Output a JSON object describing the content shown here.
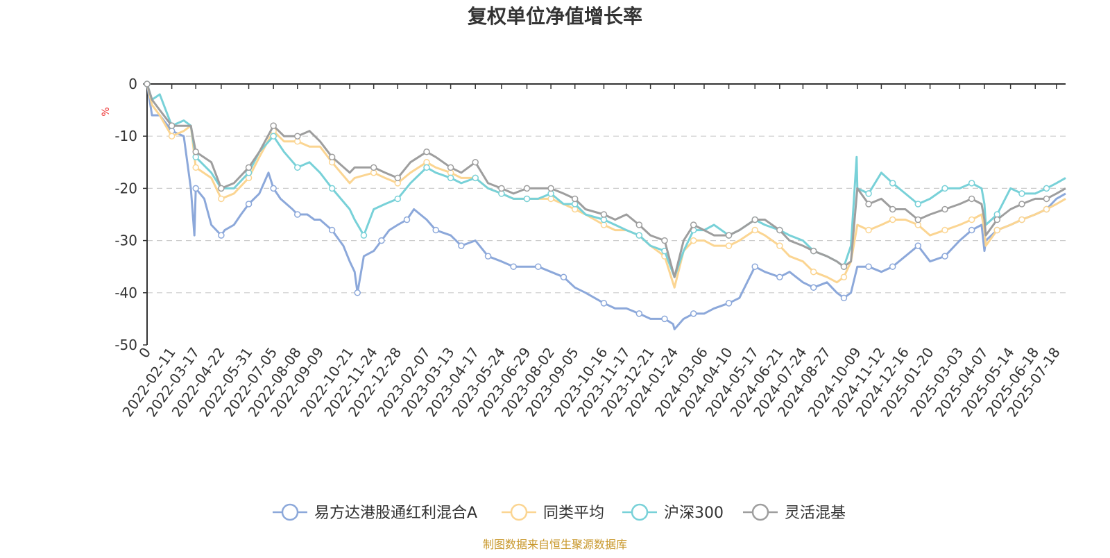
{
  "chart_data": {
    "type": "line",
    "title": "复权单位净值增长率",
    "ylabel": "%",
    "ylim": [
      -50,
      0
    ],
    "yticks": [
      0,
      -10,
      -20,
      -30,
      -40,
      -50
    ],
    "xlim": [
      "2022-01-07",
      "2025-07-31"
    ],
    "xticks": [
      "0",
      "2022-02-11",
      "2022-03-17",
      "2022-04-22",
      "2022-05-31",
      "2022-07-05",
      "2022-08-08",
      "2022-09-09",
      "2022-10-21",
      "2022-11-24",
      "2022-12-28",
      "2023-02-07",
      "2023-03-13",
      "2023-04-17",
      "2023-05-24",
      "2023-06-29",
      "2023-08-02",
      "2023-09-05",
      "2023-10-16",
      "2023-11-17",
      "2023-12-21",
      "2024-01-24",
      "2024-03-06",
      "2024-04-10",
      "2024-05-17",
      "2024-06-21",
      "2024-07-24",
      "2024-08-27",
      "2024-10-09",
      "2024-11-12",
      "2024-12-16",
      "2025-01-20",
      "2025-03-03",
      "2025-04-07",
      "2025-05-14",
      "2025-06-18",
      "2025-07-18"
    ],
    "grid": true,
    "legend_position": "bottom",
    "series": [
      {
        "name": "易方达港股通红利混合A",
        "color": "#8ca8da",
        "x": [
          "2022-01-07",
          "2022-01-14",
          "2022-01-25",
          "2022-02-11",
          "2022-02-28",
          "2022-03-10",
          "2022-03-15",
          "2022-03-17",
          "2022-03-29",
          "2022-04-08",
          "2022-04-22",
          "2022-04-27",
          "2022-05-10",
          "2022-05-20",
          "2022-05-31",
          "2022-06-15",
          "2022-06-28",
          "2022-07-05",
          "2022-07-15",
          "2022-08-01",
          "2022-08-08",
          "2022-08-22",
          "2022-09-01",
          "2022-09-09",
          "2022-09-26",
          "2022-10-12",
          "2022-10-21",
          "2022-10-28",
          "2022-11-01",
          "2022-11-10",
          "2022-11-24",
          "2022-12-05",
          "2022-12-16",
          "2022-12-28",
          "2023-01-10",
          "2023-01-20",
          "2023-02-07",
          "2023-02-20",
          "2023-03-13",
          "2023-03-28",
          "2023-04-17",
          "2023-05-05",
          "2023-05-24",
          "2023-06-10",
          "2023-06-29",
          "2023-07-15",
          "2023-08-02",
          "2023-08-20",
          "2023-09-05",
          "2023-09-20",
          "2023-10-16",
          "2023-11-01",
          "2023-11-17",
          "2023-12-05",
          "2023-12-21",
          "2024-01-10",
          "2024-01-22",
          "2024-01-24",
          "2024-02-06",
          "2024-02-20",
          "2024-03-06",
          "2024-03-20",
          "2024-04-10",
          "2024-04-25",
          "2024-05-17",
          "2024-05-31",
          "2024-06-21",
          "2024-07-05",
          "2024-07-24",
          "2024-08-08",
          "2024-08-27",
          "2024-09-10",
          "2024-09-20",
          "2024-09-30",
          "2024-10-09",
          "2024-10-25",
          "2024-11-12",
          "2024-11-28",
          "2024-12-16",
          "2025-01-03",
          "2025-01-20",
          "2025-02-10",
          "2025-03-03",
          "2025-03-20",
          "2025-04-03",
          "2025-04-07",
          "2025-04-09",
          "2025-04-25",
          "2025-05-14",
          "2025-05-30",
          "2025-06-18",
          "2025-07-04",
          "2025-07-18",
          "2025-07-31"
        ],
        "values": [
          0,
          -6,
          -6,
          -9,
          -10,
          -20,
          -29,
          -20,
          -22,
          -27,
          -29,
          -28,
          -27,
          -25,
          -23,
          -21,
          -17,
          -20,
          -22,
          -24,
          -25,
          -25,
          -26,
          -26,
          -28,
          -31,
          -34,
          -36,
          -40,
          -33,
          -32,
          -30,
          -28,
          -27,
          -26,
          -24,
          -26,
          -28,
          -29,
          -31,
          -30,
          -33,
          -34,
          -35,
          -35,
          -35,
          -36,
          -37,
          -39,
          -40,
          -42,
          -43,
          -43,
          -44,
          -45,
          -45,
          -46,
          -47,
          -45,
          -44,
          -44,
          -43,
          -42,
          -41,
          -35,
          -36,
          -37,
          -36,
          -38,
          -39,
          -38,
          -40,
          -41,
          -40,
          -35,
          -35,
          -36,
          -35,
          -33,
          -31,
          -34,
          -33,
          -30,
          -28,
          -27,
          -32,
          -30,
          -28,
          -27,
          -26,
          -25,
          -24,
          -22,
          -21
        ]
      },
      {
        "name": "同类平均",
        "color": "#fbd592",
        "x": [
          "2022-01-07",
          "2022-01-14",
          "2022-01-25",
          "2022-02-11",
          "2022-02-28",
          "2022-03-10",
          "2022-03-17",
          "2022-04-08",
          "2022-04-22",
          "2022-05-10",
          "2022-05-31",
          "2022-06-15",
          "2022-07-05",
          "2022-07-20",
          "2022-08-08",
          "2022-08-25",
          "2022-09-09",
          "2022-09-26",
          "2022-10-21",
          "2022-10-28",
          "2022-11-24",
          "2022-12-10",
          "2022-12-28",
          "2023-01-15",
          "2023-02-07",
          "2023-02-20",
          "2023-03-13",
          "2023-03-28",
          "2023-04-17",
          "2023-05-05",
          "2023-05-24",
          "2023-06-10",
          "2023-06-29",
          "2023-07-15",
          "2023-08-02",
          "2023-08-20",
          "2023-09-05",
          "2023-09-20",
          "2023-10-16",
          "2023-11-01",
          "2023-11-17",
          "2023-12-05",
          "2023-12-21",
          "2024-01-10",
          "2024-01-24",
          "2024-02-06",
          "2024-02-20",
          "2024-03-06",
          "2024-03-20",
          "2024-04-10",
          "2024-04-25",
          "2024-05-17",
          "2024-05-31",
          "2024-06-21",
          "2024-07-05",
          "2024-07-24",
          "2024-08-08",
          "2024-08-27",
          "2024-09-10",
          "2024-09-20",
          "2024-09-30",
          "2024-10-09",
          "2024-10-25",
          "2024-11-12",
          "2024-11-28",
          "2024-12-16",
          "2025-01-03",
          "2025-01-20",
          "2025-02-10",
          "2025-03-03",
          "2025-03-20",
          "2025-04-03",
          "2025-04-07",
          "2025-04-09",
          "2025-04-25",
          "2025-05-14",
          "2025-05-30",
          "2025-06-18",
          "2025-07-04",
          "2025-07-18",
          "2025-07-31"
        ],
        "values": [
          0,
          -4,
          -6,
          -10,
          -9,
          -8,
          -16,
          -18,
          -22,
          -21,
          -18,
          -14,
          -9,
          -11,
          -11,
          -12,
          -12,
          -15,
          -19,
          -18,
          -17,
          -18,
          -19,
          -17,
          -15,
          -16,
          -17,
          -18,
          -18,
          -20,
          -21,
          -22,
          -22,
          -22,
          -22,
          -23,
          -24,
          -25,
          -27,
          -28,
          -28,
          -29,
          -31,
          -33,
          -39,
          -32,
          -30,
          -30,
          -31,
          -31,
          -30,
          -28,
          -29,
          -31,
          -33,
          -34,
          -36,
          -37,
          -38,
          -37,
          -34,
          -27,
          -28,
          -27,
          -26,
          -26,
          -27,
          -29,
          -28,
          -27,
          -26,
          -25,
          -28,
          -31,
          -28,
          -27,
          -26,
          -25,
          -24,
          -23,
          -22
        ]
      },
      {
        "name": "沪深300",
        "color": "#78d1d8",
        "x": [
          "2022-01-07",
          "2022-01-14",
          "2022-01-25",
          "2022-02-11",
          "2022-02-28",
          "2022-03-10",
          "2022-03-17",
          "2022-04-08",
          "2022-04-22",
          "2022-05-10",
          "2022-05-31",
          "2022-06-15",
          "2022-07-05",
          "2022-07-20",
          "2022-08-08",
          "2022-08-25",
          "2022-09-09",
          "2022-09-26",
          "2022-10-21",
          "2022-10-28",
          "2022-11-10",
          "2022-11-24",
          "2022-12-10",
          "2022-12-28",
          "2023-01-15",
          "2023-02-07",
          "2023-02-20",
          "2023-03-13",
          "2023-03-28",
          "2023-04-17",
          "2023-05-05",
          "2023-05-24",
          "2023-06-10",
          "2023-06-29",
          "2023-07-15",
          "2023-08-02",
          "2023-08-20",
          "2023-09-05",
          "2023-09-20",
          "2023-10-16",
          "2023-11-01",
          "2023-11-17",
          "2023-12-05",
          "2023-12-21",
          "2024-01-10",
          "2024-01-24",
          "2024-02-06",
          "2024-02-20",
          "2024-03-06",
          "2024-03-20",
          "2024-04-10",
          "2024-04-25",
          "2024-05-17",
          "2024-05-31",
          "2024-06-21",
          "2024-07-05",
          "2024-07-24",
          "2024-08-08",
          "2024-08-27",
          "2024-09-10",
          "2024-09-20",
          "2024-09-30",
          "2024-10-08",
          "2024-10-09",
          "2024-10-25",
          "2024-11-12",
          "2024-11-28",
          "2024-12-16",
          "2025-01-03",
          "2025-01-20",
          "2025-02-10",
          "2025-03-03",
          "2025-03-20",
          "2025-04-03",
          "2025-04-07",
          "2025-04-09",
          "2025-04-25",
          "2025-05-14",
          "2025-05-30",
          "2025-06-18",
          "2025-07-04",
          "2025-07-18",
          "2025-07-31"
        ],
        "values": [
          0,
          -3,
          -2,
          -8,
          -7,
          -8,
          -14,
          -17,
          -20,
          -20,
          -17,
          -13,
          -10,
          -13,
          -16,
          -15,
          -17,
          -20,
          -24,
          -26,
          -29,
          -24,
          -23,
          -22,
          -19,
          -16,
          -17,
          -18,
          -19,
          -18,
          -20,
          -21,
          -22,
          -22,
          -22,
          -21,
          -23,
          -23,
          -25,
          -26,
          -27,
          -28,
          -29,
          -31,
          -32,
          -37,
          -32,
          -28,
          -28,
          -27,
          -29,
          -28,
          -26,
          -27,
          -28,
          -29,
          -30,
          -32,
          -33,
          -34,
          -35,
          -31,
          -14,
          -20,
          -21,
          -17,
          -19,
          -21,
          -23,
          -22,
          -20,
          -20,
          -19,
          -20,
          -23,
          -27,
          -25,
          -20,
          -21,
          -21,
          -20,
          -19,
          -18
        ]
      },
      {
        "name": "灵活混基",
        "color": "#9e9e9e",
        "x": [
          "2022-01-07",
          "2022-01-14",
          "2022-01-25",
          "2022-02-11",
          "2022-02-28",
          "2022-03-10",
          "2022-03-17",
          "2022-04-08",
          "2022-04-22",
          "2022-05-10",
          "2022-05-31",
          "2022-06-15",
          "2022-07-05",
          "2022-07-20",
          "2022-08-08",
          "2022-08-25",
          "2022-09-09",
          "2022-09-26",
          "2022-10-21",
          "2022-10-28",
          "2022-11-24",
          "2022-12-10",
          "2022-12-28",
          "2023-01-15",
          "2023-02-07",
          "2023-02-20",
          "2023-03-13",
          "2023-03-28",
          "2023-04-17",
          "2023-05-05",
          "2023-05-24",
          "2023-06-10",
          "2023-06-29",
          "2023-07-15",
          "2023-08-02",
          "2023-08-20",
          "2023-09-05",
          "2023-09-20",
          "2023-10-16",
          "2023-11-01",
          "2023-11-17",
          "2023-12-05",
          "2023-12-21",
          "2024-01-10",
          "2024-01-24",
          "2024-02-06",
          "2024-02-20",
          "2024-03-06",
          "2024-03-20",
          "2024-04-10",
          "2024-04-25",
          "2024-05-17",
          "2024-05-31",
          "2024-06-21",
          "2024-07-05",
          "2024-07-24",
          "2024-08-08",
          "2024-08-27",
          "2024-09-10",
          "2024-09-20",
          "2024-09-30",
          "2024-10-09",
          "2024-10-25",
          "2024-11-12",
          "2024-11-28",
          "2024-12-16",
          "2025-01-03",
          "2025-01-20",
          "2025-02-10",
          "2025-03-03",
          "2025-03-20",
          "2025-04-03",
          "2025-04-07",
          "2025-04-09",
          "2025-04-25",
          "2025-05-14",
          "2025-05-30",
          "2025-06-18",
          "2025-07-04",
          "2025-07-18",
          "2025-07-31"
        ],
        "values": [
          0,
          -3,
          -5,
          -8,
          -8,
          -8,
          -13,
          -15,
          -20,
          -19,
          -16,
          -13,
          -8,
          -10,
          -10,
          -9,
          -11,
          -14,
          -17,
          -16,
          -16,
          -17,
          -18,
          -15,
          -13,
          -14,
          -16,
          -17,
          -15,
          -19,
          -20,
          -21,
          -20,
          -20,
          -20,
          -21,
          -22,
          -24,
          -25,
          -26,
          -25,
          -27,
          -29,
          -30,
          -37,
          -30,
          -27,
          -28,
          -29,
          -29,
          -28,
          -26,
          -26,
          -28,
          -30,
          -31,
          -32,
          -33,
          -34,
          -35,
          -34,
          -20,
          -23,
          -22,
          -24,
          -24,
          -26,
          -25,
          -24,
          -23,
          -22,
          -23,
          -26,
          -29,
          -26,
          -24,
          -23,
          -22,
          -22,
          -21,
          -20
        ]
      }
    ]
  },
  "footer": {
    "source": "制图数据来自恒生聚源数据库"
  }
}
